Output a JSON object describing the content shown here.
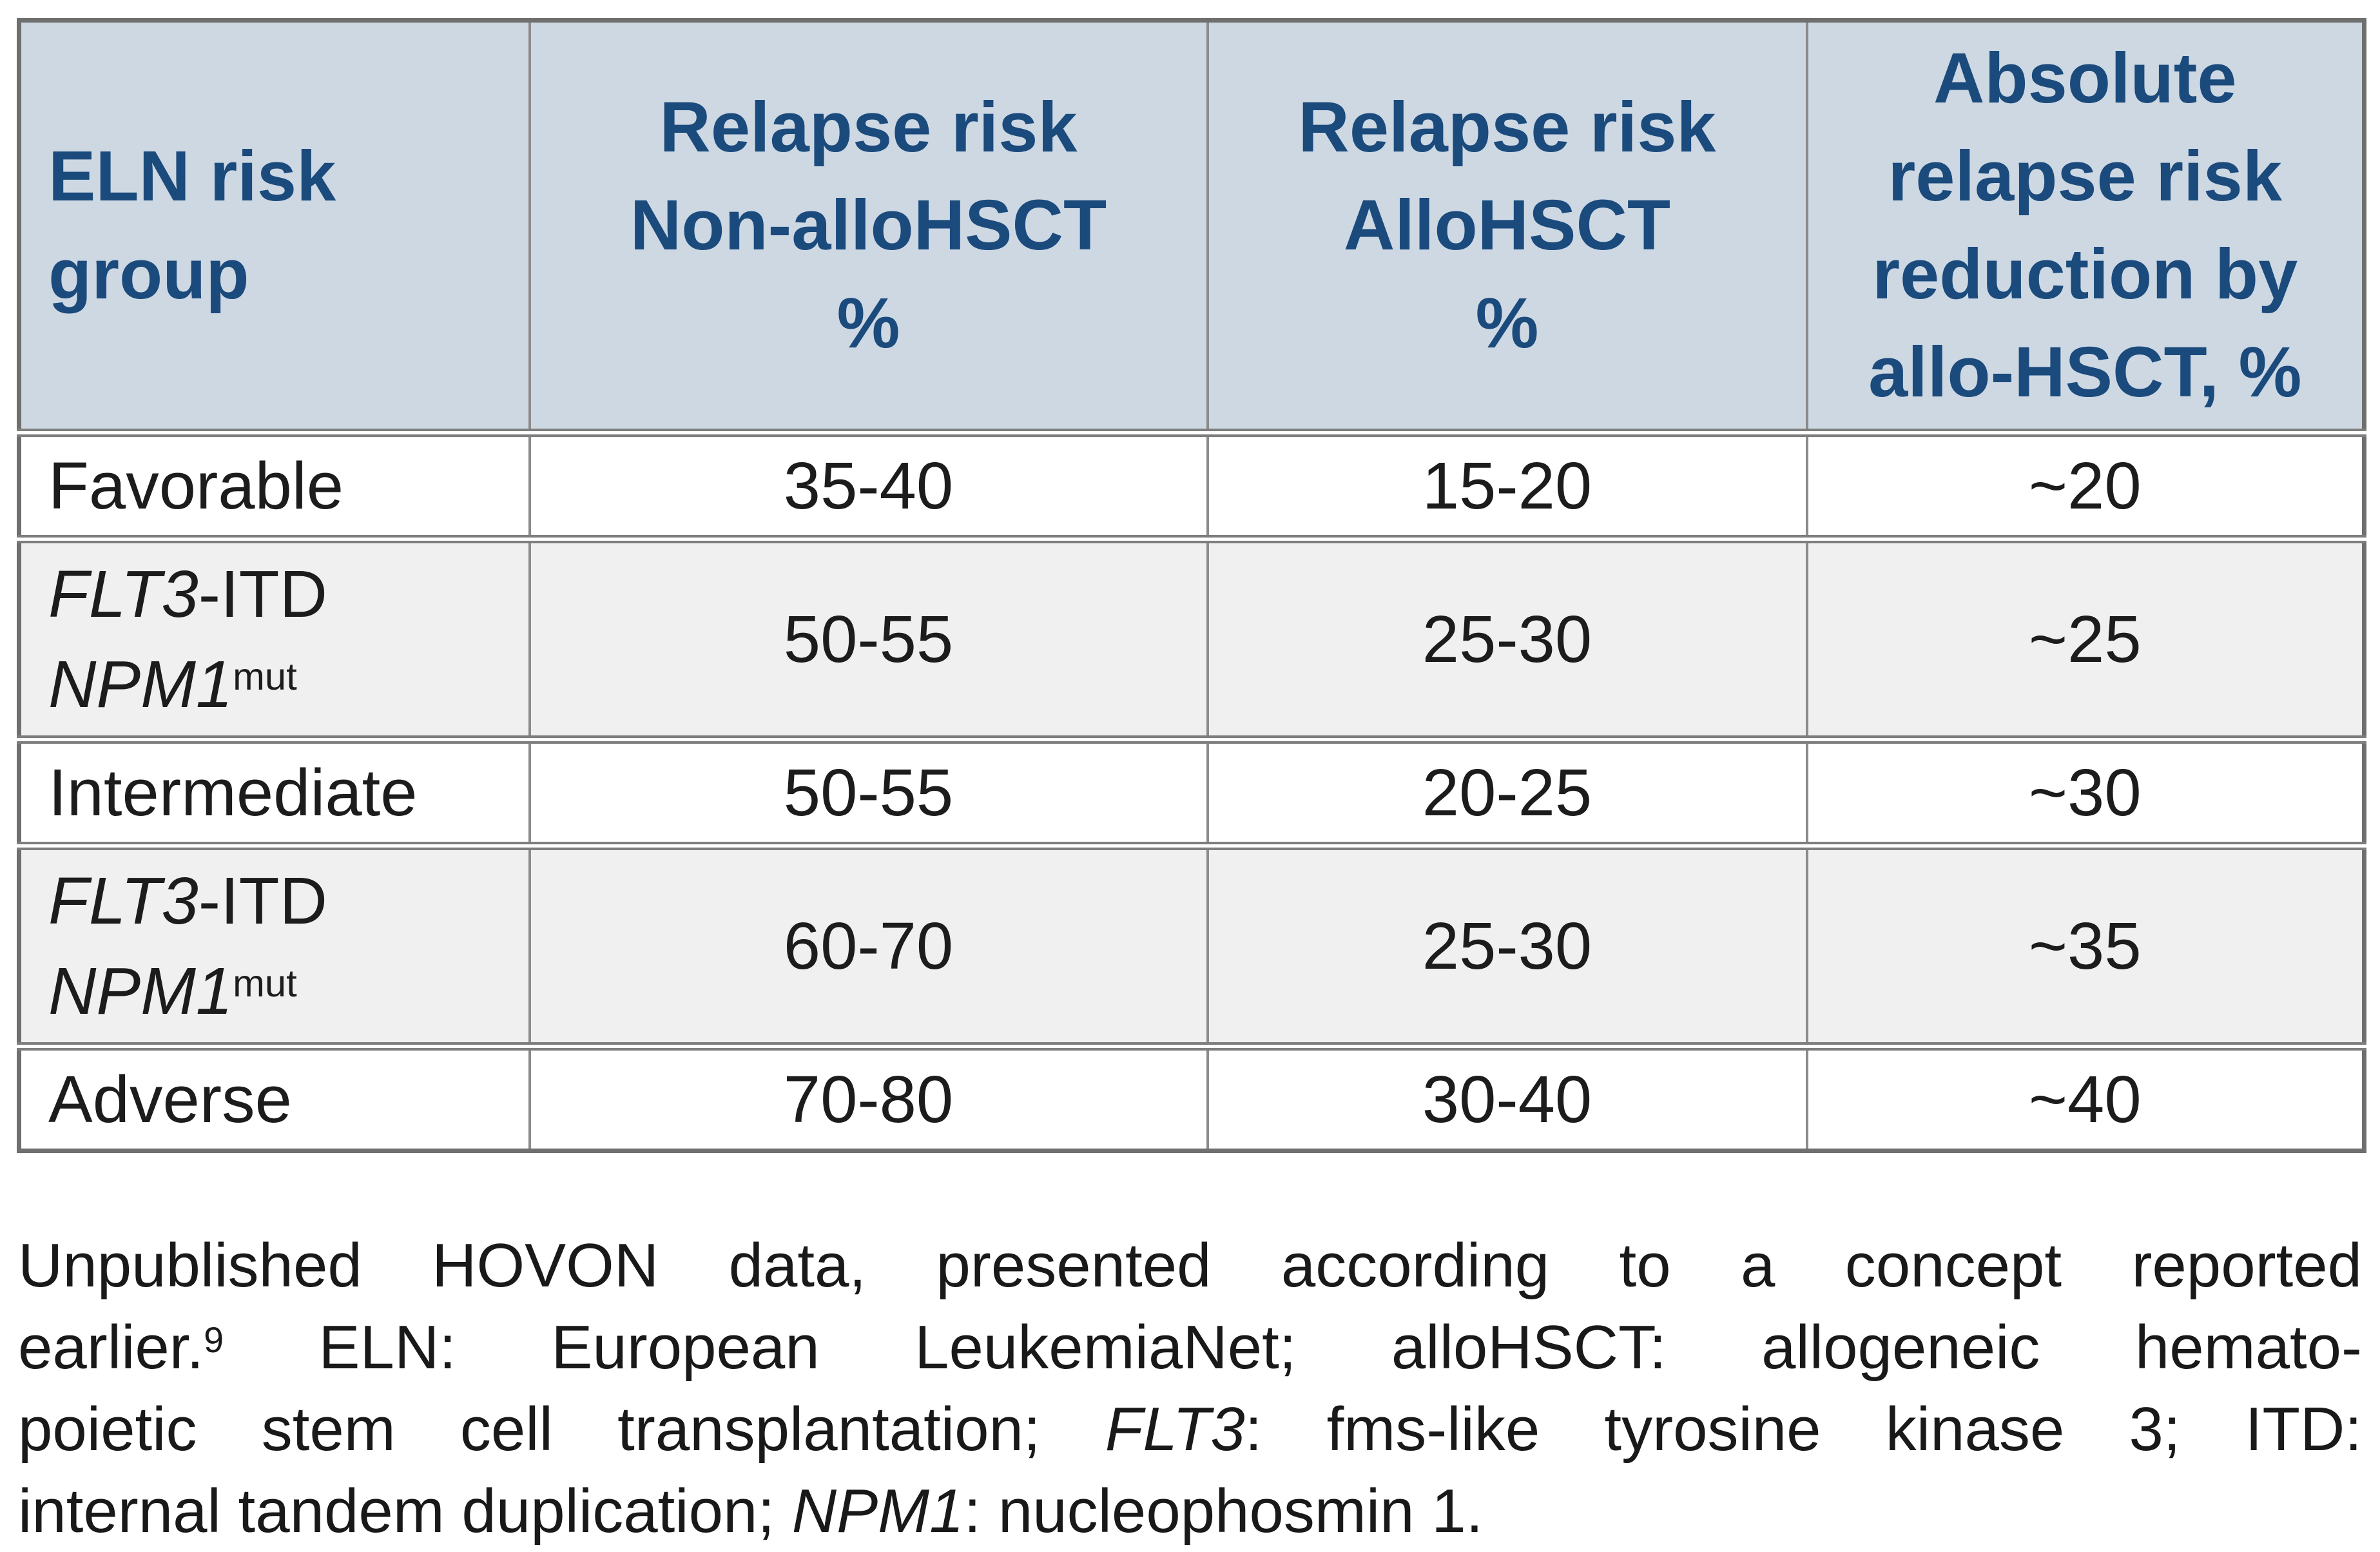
{
  "colors": {
    "header_bg": "#cdd8e3",
    "header_text": "#1b4a7c",
    "alt_row_bg": "#f0f0f0",
    "border": "#7e7e7e",
    "body_text": "#1c1c1c"
  },
  "table": {
    "headers": [
      "ELN risk\ngroup",
      "Relapse risk\nNon-alloHSCT\n%",
      "Relapse risk\nAlloHSCT\n%",
      "Absolute\nrelapse risk\nreduction by\nallo-HSCT, %"
    ],
    "rows": [
      {
        "group": "Favorable",
        "relapse_non_allohsct": "35-40",
        "relapse_allohsct": "15-20",
        "absolute_reduction": "~20"
      },
      {
        "group_parts": [
          {
            "style": "italic",
            "text": "FLT3"
          },
          {
            "style": "plain",
            "text": "-ITD"
          },
          {
            "style": "br"
          },
          {
            "style": "italic",
            "text": "NPM1"
          },
          {
            "style": "sup",
            "text": "mut"
          }
        ],
        "relapse_non_allohsct": "50-55",
        "relapse_allohsct": "25-30",
        "absolute_reduction": "~25"
      },
      {
        "group": "Intermediate",
        "relapse_non_allohsct": "50-55",
        "relapse_allohsct": "20-25",
        "absolute_reduction": "~30"
      },
      {
        "group_parts": [
          {
            "style": "italic",
            "text": "FLT3"
          },
          {
            "style": "plain",
            "text": "-ITD"
          },
          {
            "style": "br"
          },
          {
            "style": "italic",
            "text": "NPM1"
          },
          {
            "style": "sup",
            "text": "mut"
          }
        ],
        "relapse_non_allohsct": "60-70",
        "relapse_allohsct": "25-30",
        "absolute_reduction": "~35"
      },
      {
        "group": "Adverse",
        "relapse_non_allohsct": "70-80",
        "relapse_allohsct": "30-40",
        "absolute_reduction": "~40"
      }
    ]
  },
  "footnote": {
    "lines": [
      [
        {
          "style": "plain",
          "text": "Unpublished HOVON data, presented according to a concept reported"
        }
      ],
      [
        {
          "style": "plain",
          "text": "earlier."
        },
        {
          "style": "sup",
          "text": "9"
        },
        {
          "style": "plain",
          "text": " ELN: European LeukemiaNet; alloHSCT: allogeneic hemato-"
        }
      ],
      [
        {
          "style": "plain",
          "text": "poietic stem cell transplantation; "
        },
        {
          "style": "italic",
          "text": "FLT3"
        },
        {
          "style": "plain",
          "text": ": fms-like tyrosine kinase 3; ITD:"
        }
      ],
      [
        {
          "style": "plain",
          "text": "internal tandem duplication; "
        },
        {
          "style": "italic",
          "text": "NPM1"
        },
        {
          "style": "plain",
          "text": ": nucleophosmin 1."
        }
      ]
    ]
  }
}
